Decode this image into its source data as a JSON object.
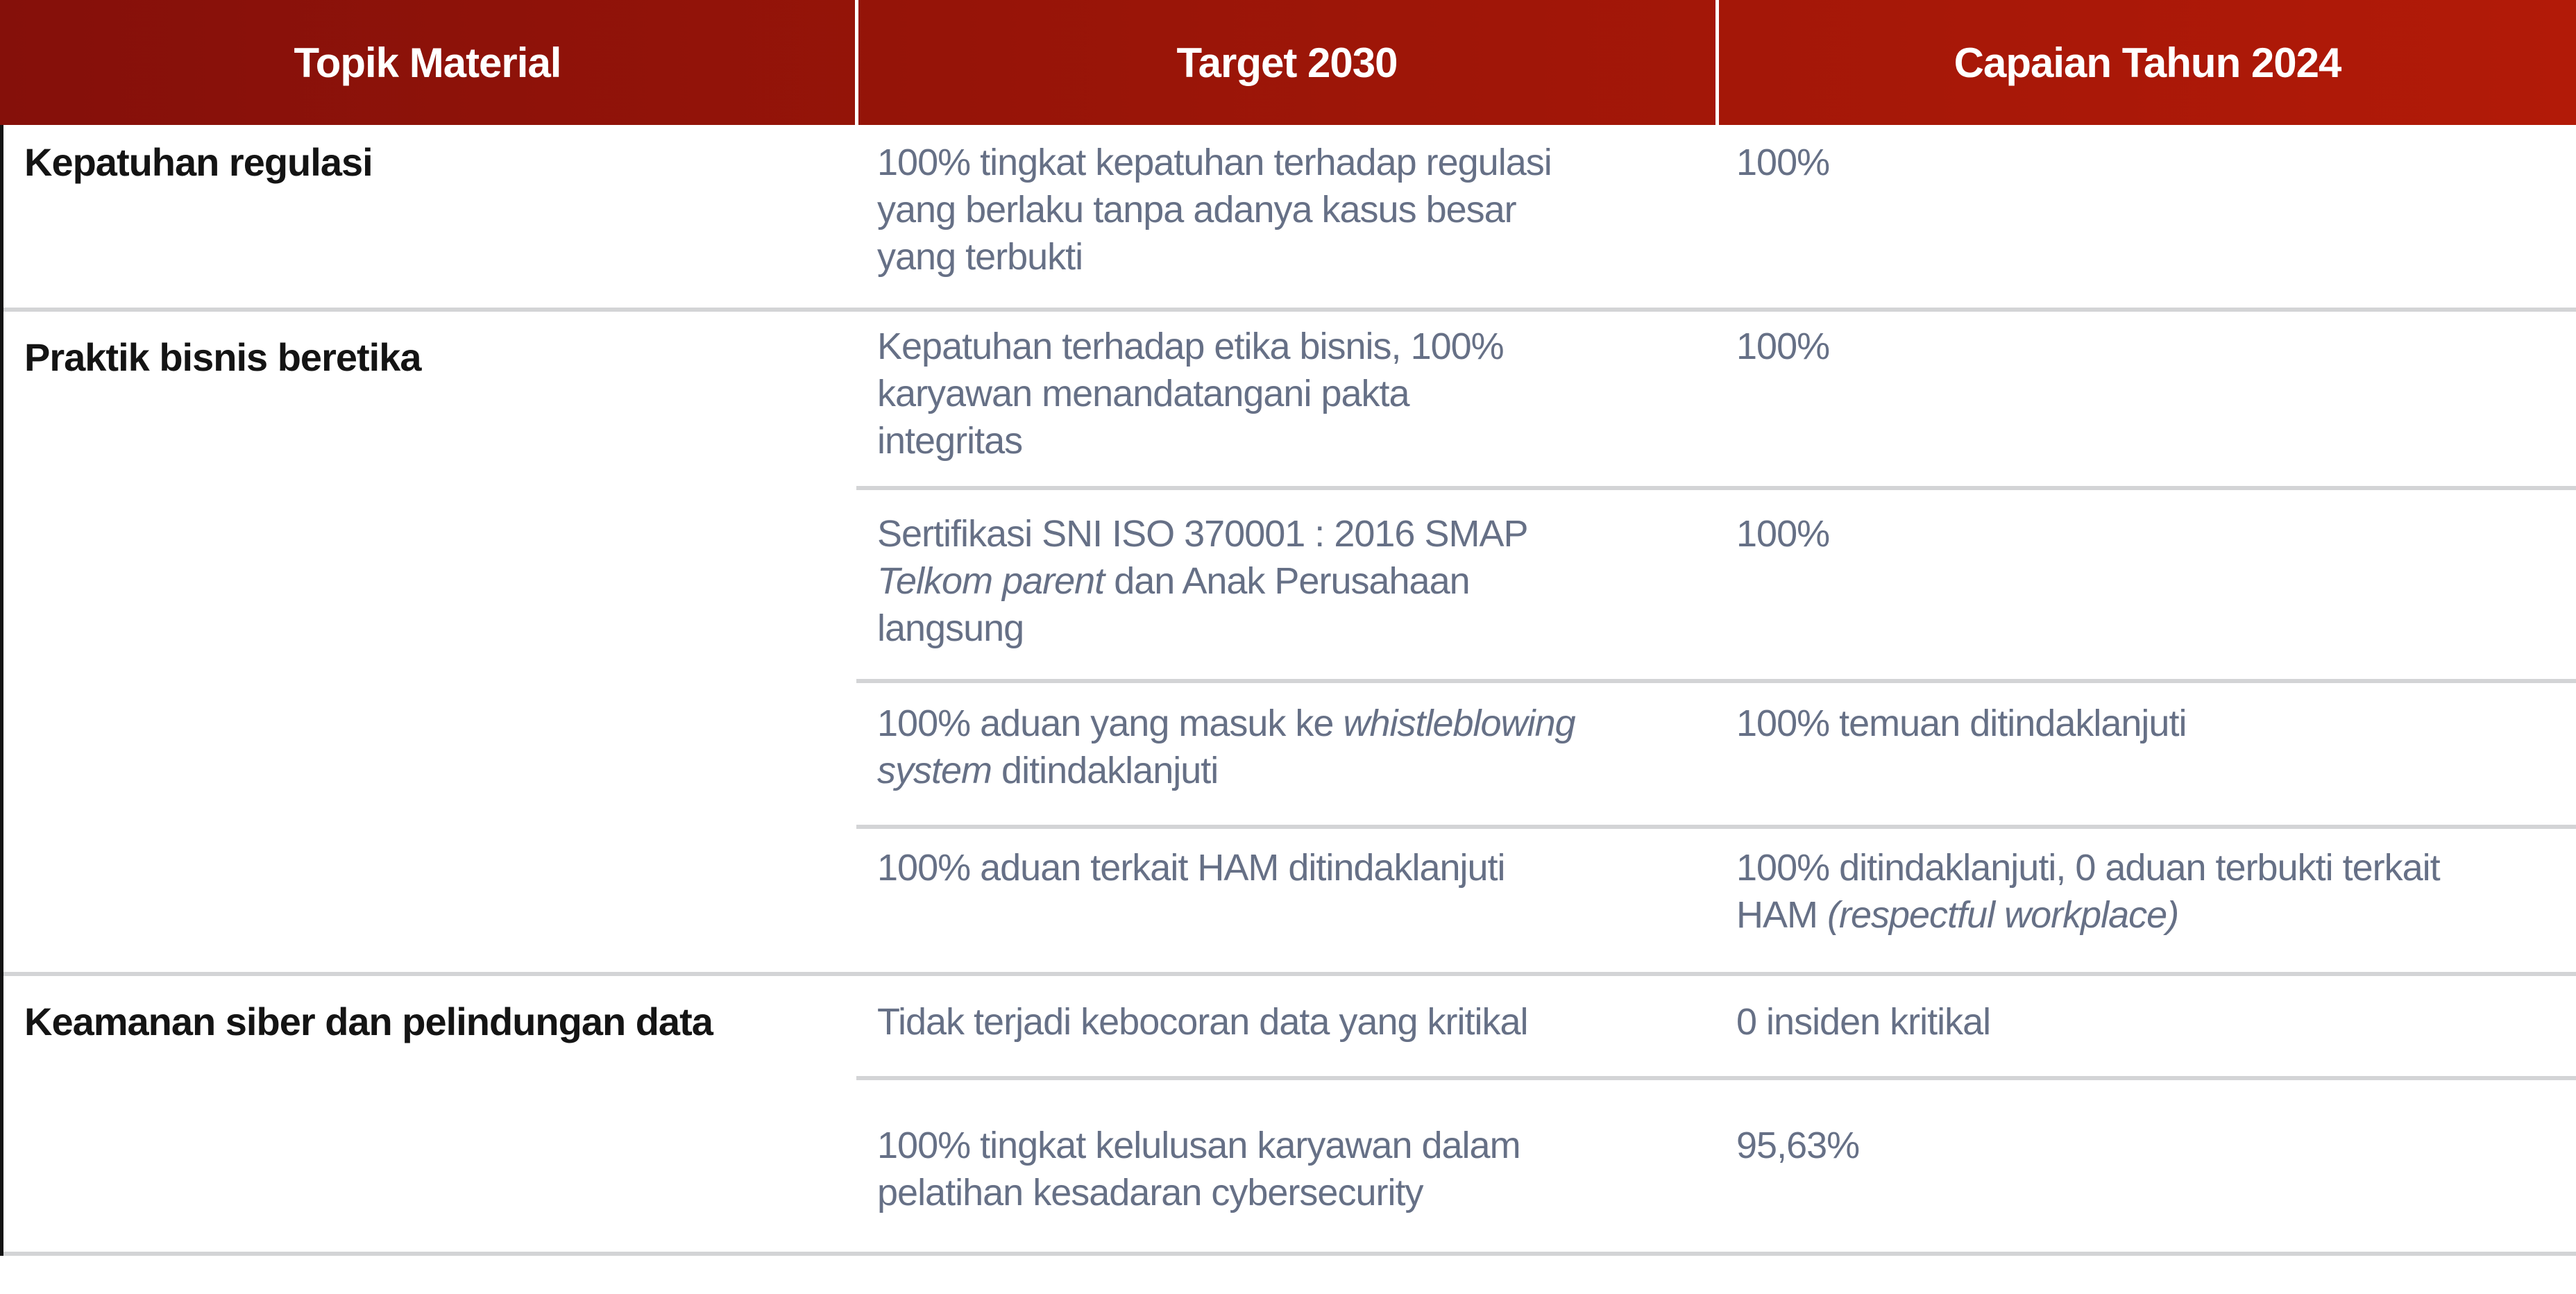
{
  "colors": {
    "header_red_left": "#85100a",
    "header_red_mid": "#9a1508",
    "header_red_right": "#b21a08",
    "header_text": "#ffffff",
    "divider": "#d3d4d6",
    "text_body": "#667086",
    "text_topic": "#141414",
    "border_left": "#141414"
  },
  "header": {
    "columns": [
      "Topik Material",
      "Target 2030",
      "Capaian Tahun 2024"
    ]
  },
  "sections": [
    {
      "topic": "Kepatuhan regulasi",
      "subrows": [
        {
          "target": [
            {
              "t": "100% tingkat kepatuhan terhadap regulasi\nyang berlaku tanpa adanya kasus besar\nyang terbukti",
              "i": false
            }
          ],
          "capaian": [
            {
              "t": "100%",
              "i": false
            }
          ]
        }
      ]
    },
    {
      "topic": "Praktik bisnis beretika",
      "subrows": [
        {
          "target": [
            {
              "t": "Kepatuhan terhadap etika bisnis, 100%\nkaryawan menandatangani pakta\nintegritas",
              "i": false
            }
          ],
          "capaian": [
            {
              "t": "100%",
              "i": false
            }
          ]
        },
        {
          "target": [
            {
              "t": "Sertifikasi SNI ISO 370001 : 2016 SMAP\n",
              "i": false
            },
            {
              "t": "Telkom parent",
              "i": true
            },
            {
              "t": " dan Anak Perusahaan\nlangsung",
              "i": false
            }
          ],
          "capaian": [
            {
              "t": "100%",
              "i": false
            }
          ]
        },
        {
          "target": [
            {
              "t": "100% aduan yang masuk ke ",
              "i": false
            },
            {
              "t": "whistleblowing\nsystem",
              "i": true
            },
            {
              "t": " ditindaklanjuti",
              "i": false
            }
          ],
          "capaian": [
            {
              "t": "100% temuan ditindaklanjuti",
              "i": false
            }
          ]
        },
        {
          "target": [
            {
              "t": "100% aduan terkait HAM ditindaklanjuti",
              "i": false
            }
          ],
          "capaian": [
            {
              "t": "100% ditindaklanjuti, 0 aduan terbukti terkait\nHAM ",
              "i": false
            },
            {
              "t": "(respectful workplace)",
              "i": true
            }
          ]
        }
      ]
    },
    {
      "topic": "Keamanan siber dan pelindungan data",
      "subrows": [
        {
          "target": [
            {
              "t": "Tidak terjadi kebocoran data yang kritikal",
              "i": false
            }
          ],
          "capaian": [
            {
              "t": "0 insiden kritikal",
              "i": false
            }
          ]
        },
        {
          "target": [
            {
              "t": "100% tingkat kelulusan karyawan dalam\npelatihan kesadaran cybersecurity",
              "i": false
            }
          ],
          "capaian": [
            {
              "t": "95,63%",
              "i": false
            }
          ]
        }
      ]
    }
  ]
}
